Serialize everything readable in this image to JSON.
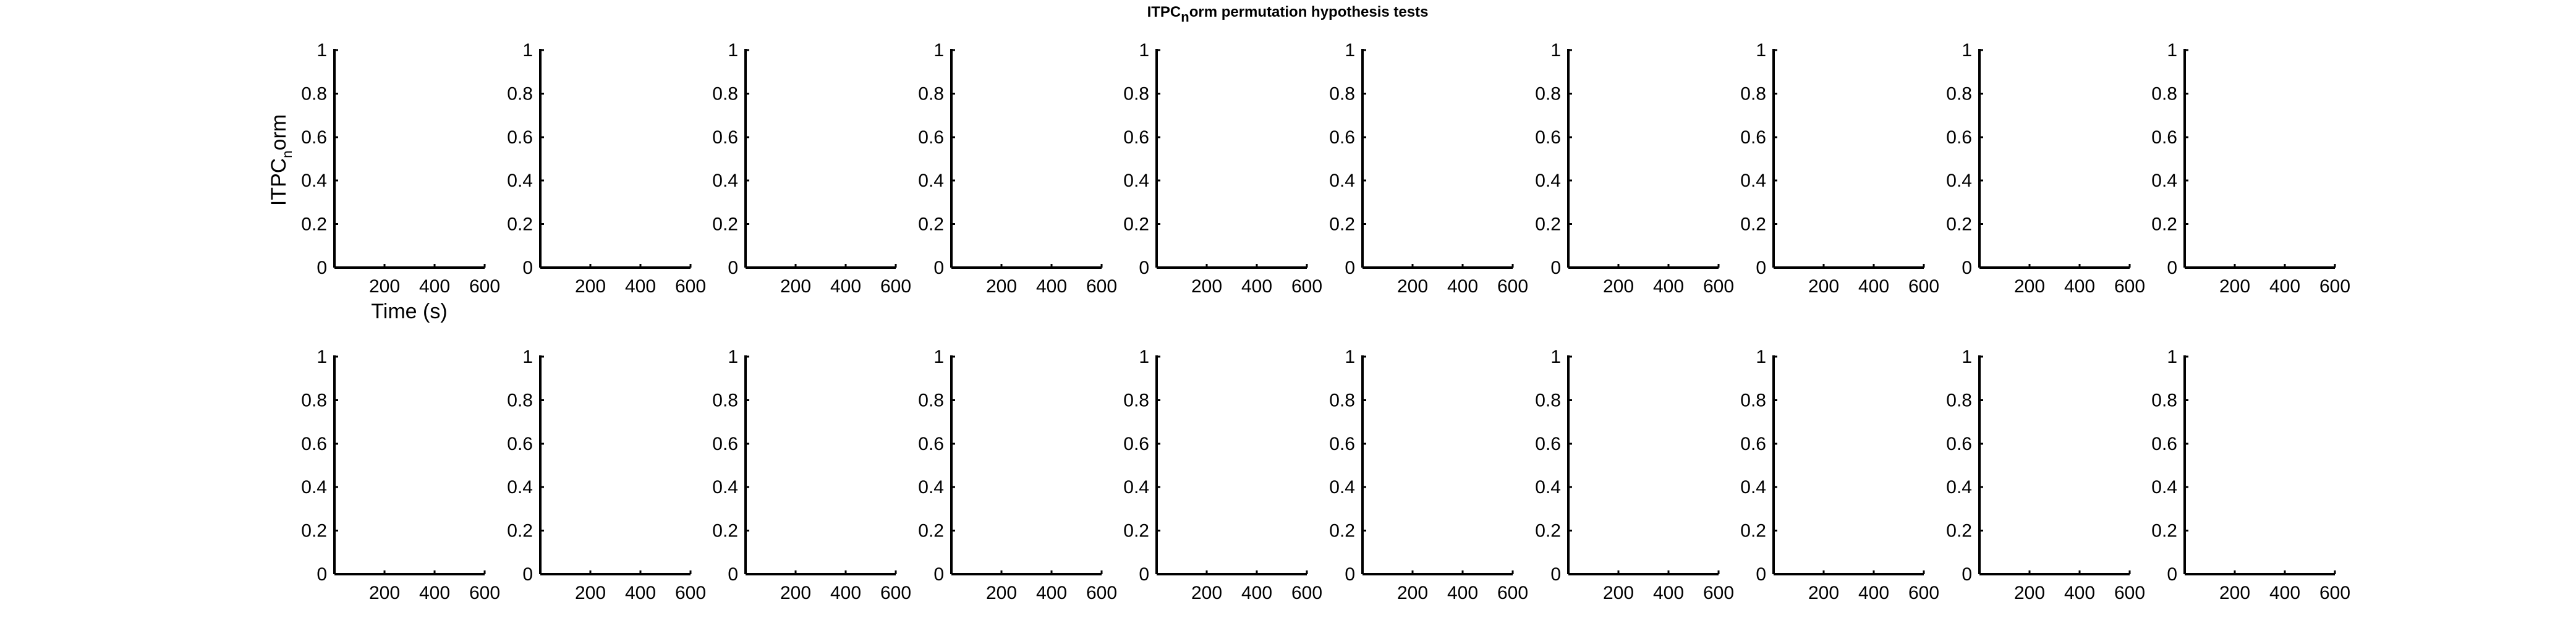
{
  "chart_data": {
    "type": "line",
    "title": {
      "main": "ITPC",
      "subscript": "n",
      "rest": "orm permutation hypothesis tests"
    },
    "ylabel": {
      "main": "ITPC",
      "subscript": "n",
      "rest": "orm"
    },
    "xlabel": "Time (s)",
    "grid": false,
    "layout": {
      "rows": 2,
      "cols": 10
    },
    "xlim": [
      0,
      600
    ],
    "ylim": [
      0,
      1
    ],
    "xticks": [
      200,
      400,
      600
    ],
    "xtick_labels": [
      "200",
      "400",
      "600"
    ],
    "yticks": [
      0,
      0.2,
      0.4,
      0.6,
      0.8,
      1
    ],
    "ytick_labels": [
      "0",
      "0.2",
      "0.4",
      "0.6",
      "0.8",
      "1"
    ],
    "panel_count": 20,
    "series": []
  }
}
